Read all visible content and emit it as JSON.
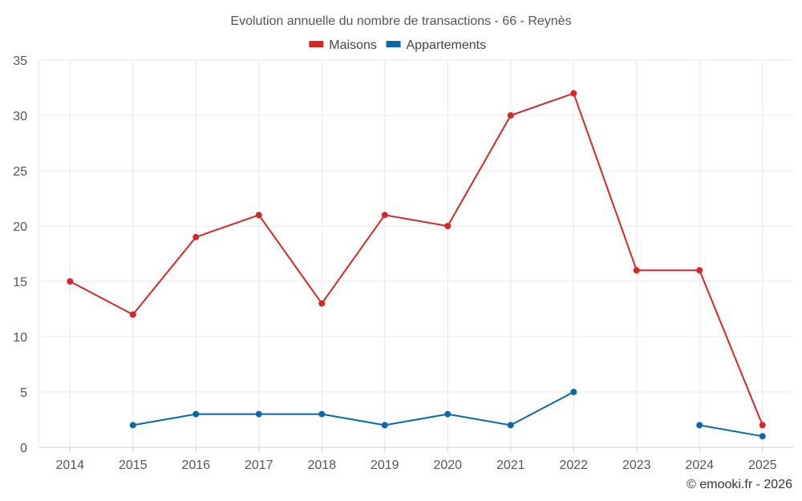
{
  "chart_data": {
    "type": "line",
    "title": "Evolution annuelle du nombre de transactions - 66 - Reynès",
    "categories": [
      "2014",
      "2015",
      "2016",
      "2017",
      "2018",
      "2019",
      "2020",
      "2021",
      "2022",
      "2023",
      "2024",
      "2025"
    ],
    "ylim": [
      0,
      35
    ],
    "yticks": [
      0,
      5,
      10,
      15,
      20,
      25,
      30,
      35
    ],
    "grid": true,
    "legend_position": "top-center",
    "series": [
      {
        "name": "Maisons",
        "color": "#d62728",
        "values": [
          15,
          12,
          19,
          21,
          13,
          21,
          20,
          30,
          32,
          16,
          16,
          2
        ]
      },
      {
        "name": "Appartements",
        "color": "#0868a8",
        "values": [
          null,
          2,
          3,
          3,
          3,
          2,
          3,
          2,
          5,
          null,
          2,
          1
        ]
      }
    ]
  },
  "credit": "© emooki.fr - 2026"
}
